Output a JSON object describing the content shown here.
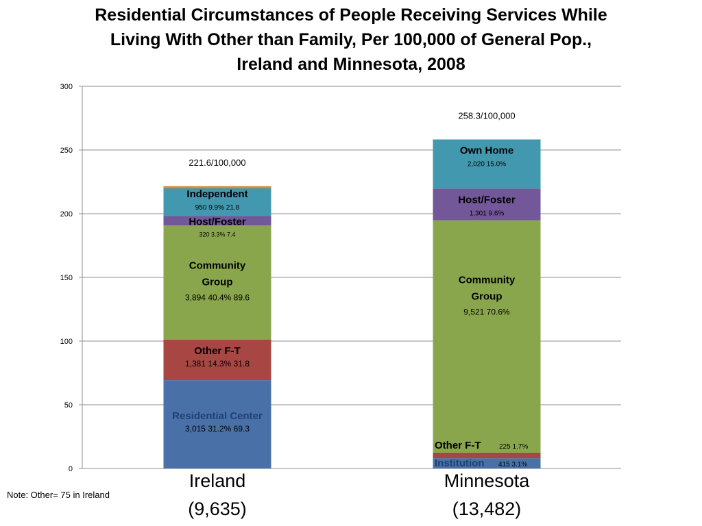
{
  "title_lines": [
    "Residential Circumstances of People Receiving Services While",
    "Living With Other than Family, Per 100,000 of General Pop.,",
    "Ireland and Minnesota, 2008"
  ],
  "note": "Note: Other= 75 in Ireland",
  "colors": {
    "residential_center": "#4a71a7",
    "other_ft": "#a84643",
    "community_group": "#89a64d",
    "host_foster": "#725899",
    "independent": "#4298ae",
    "other": "#d98c3e",
    "institution": "#4a71a7",
    "grid": "#8c8c8c"
  },
  "chart_data": {
    "type": "bar",
    "stacked": true,
    "ylim": [
      0,
      300
    ],
    "yticks": [
      0,
      50,
      100,
      150,
      200,
      250,
      300
    ],
    "grid": true,
    "categories": [
      {
        "name": "Ireland",
        "sub": "(9,635)",
        "total_label": "221.6/100,000"
      },
      {
        "name": "Minnesota",
        "sub": "(13,482)",
        "total_label": "258.3/100,000"
      }
    ],
    "segments": [
      [
        {
          "key": "residential_center",
          "value": 69.3,
          "color_key": "residential_center",
          "label": "Residential Center",
          "detail": "3,015   31.2%  69.3"
        },
        {
          "key": "other_ft",
          "value": 31.8,
          "color_key": "other_ft",
          "label": "Other F-T",
          "detail": "1,381   14.3%   31.8"
        },
        {
          "key": "community_group",
          "value": 89.6,
          "color_key": "community_group",
          "label": "Community Group",
          "detail": "3,894   40.4%   89.6"
        },
        {
          "key": "host_foster",
          "value": 7.4,
          "color_key": "host_foster",
          "label": "Host/Foster",
          "detail": "320  3.3%  7.4"
        },
        {
          "key": "independent",
          "value": 21.8,
          "color_key": "independent",
          "label": "Independent",
          "detail": "950   9.9%   21.8"
        },
        {
          "key": "other",
          "value": 1.7,
          "color_key": "other"
        }
      ],
      [
        {
          "key": "institution",
          "value": 8.0,
          "color_key": "institution",
          "label": "Institution",
          "detail": "415   3.1%"
        },
        {
          "key": "other_ft",
          "value": 4.4,
          "color_key": "other_ft",
          "label": "Other F-T",
          "detail": "225   1.7%"
        },
        {
          "key": "community_group",
          "value": 182.4,
          "color_key": "community_group",
          "label": "Community Group",
          "detail": "9,521   70.6%"
        },
        {
          "key": "host_foster",
          "value": 24.9,
          "color_key": "host_foster",
          "label": "Host/Foster",
          "detail": "1,301   9.6%"
        },
        {
          "key": "own_home",
          "value": 38.6,
          "color_key": "independent",
          "label": "Own Home",
          "detail": "2,020   15.0%"
        }
      ]
    ]
  }
}
